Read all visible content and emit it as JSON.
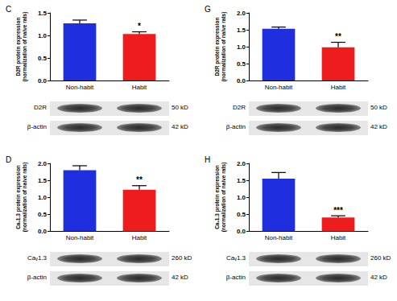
{
  "chart_data": [
    {
      "type": "bar",
      "title": "C",
      "ylabel": "D2R protein expression\n(normalization of naive rats)",
      "categories": [
        "Non-habit",
        "Habit"
      ],
      "values": [
        1.27,
        1.03
      ],
      "errors": [
        0.07,
        0.05
      ],
      "colors": [
        "#1f2fe0",
        "#ee1c1c"
      ],
      "ylim": [
        0,
        1.5
      ],
      "yticks": [
        {
          "value": 0,
          "label": "0.0"
        },
        0.5,
        {
          "value": 1,
          "label": "1.0"
        },
        1.5
      ],
      "annotations": [
        {
          "category": "Habit",
          "text": "*"
        }
      ],
      "blots": [
        {
          "label": "D2R",
          "size": "50 kD"
        },
        {
          "label": "β-actin",
          "size": "42 kD"
        }
      ]
    },
    {
      "type": "bar",
      "title": "D",
      "ylabel": "Caᵥ1.3 protein expression\n(normalization of naive rats)",
      "categories": [
        "Non-habit",
        "Habit"
      ],
      "values": [
        1.8,
        1.22
      ],
      "errors": [
        0.13,
        0.12
      ],
      "colors": [
        "#1f2fe0",
        "#ee1c1c"
      ],
      "ylim": [
        0,
        2
      ],
      "yticks": [
        {
          "value": 0,
          "label": "0.0"
        },
        0.5,
        {
          "value": 1,
          "label": "1.0"
        },
        1.5,
        {
          "value": 2,
          "label": "2.0"
        }
      ],
      "annotations": [
        {
          "category": "Habit",
          "text": "**"
        }
      ],
      "blots": [
        {
          "label": "Caᵥ1.3",
          "size": "260 kD"
        },
        {
          "label": "β-actin",
          "size": "42 kD"
        }
      ]
    },
    {
      "type": "bar",
      "title": "G",
      "ylabel": "D2R protein expression\n(normalization of naive rats)",
      "categories": [
        "Non-habit",
        "Habit"
      ],
      "values": [
        1.53,
        0.98
      ],
      "errors": [
        0.05,
        0.15
      ],
      "colors": [
        "#1f2fe0",
        "#ee1c1c"
      ],
      "ylim": [
        0,
        2
      ],
      "yticks": [
        {
          "value": 0,
          "label": "0.0"
        },
        0.5,
        {
          "value": 1,
          "label": "1.0"
        },
        1.5,
        {
          "value": 2,
          "label": "2.0"
        }
      ],
      "annotations": [
        {
          "category": "Habit",
          "text": "**"
        }
      ],
      "blots": [
        {
          "label": "D2R",
          "size": "50 kD"
        },
        {
          "label": "β-actin",
          "size": "42 kD"
        }
      ]
    },
    {
      "type": "bar",
      "title": "H",
      "ylabel": "Caᵥ1.3 protein expression\n(normalization of naive rats)",
      "categories": [
        "Non-habit",
        "Habit"
      ],
      "values": [
        1.55,
        0.4
      ],
      "errors": [
        0.18,
        0.05
      ],
      "colors": [
        "#1f2fe0",
        "#ee1c1c"
      ],
      "ylim": [
        0,
        2
      ],
      "yticks": [
        {
          "value": 0,
          "label": "0.0"
        },
        0.5,
        {
          "value": 1,
          "label": "1.0"
        },
        1.5,
        {
          "value": 2,
          "label": "2.0"
        }
      ],
      "annotations": [
        {
          "category": "Habit",
          "text": "***"
        }
      ],
      "blots": [
        {
          "label": "Caᵥ1.3",
          "size": "260 kD"
        },
        {
          "label": "β-actin",
          "size": "42 kD"
        }
      ]
    }
  ]
}
